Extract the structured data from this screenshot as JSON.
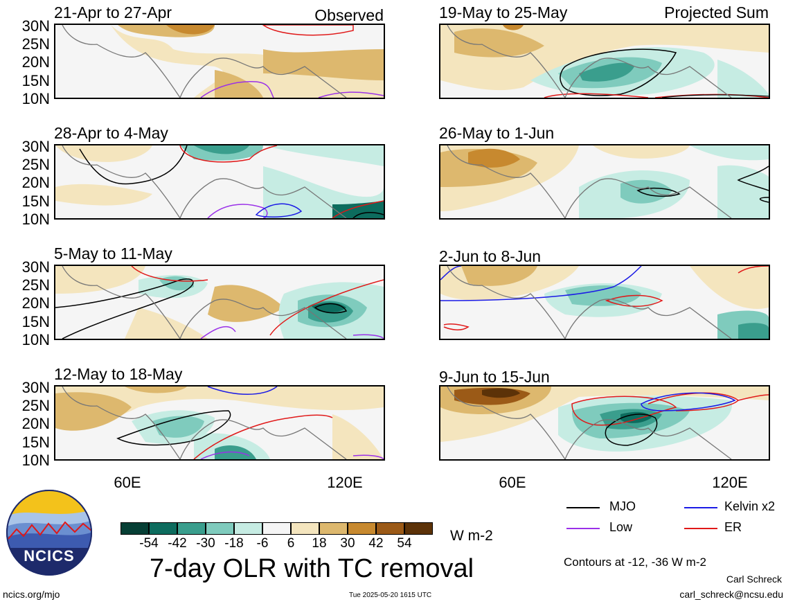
{
  "panels": [
    {
      "title": "21-Apr to 27-Apr",
      "tag": "Observed"
    },
    {
      "title": "28-Apr to 4-May",
      "tag": ""
    },
    {
      "title": "5-May to 11-May",
      "tag": ""
    },
    {
      "title": "12-May to 18-May",
      "tag": ""
    },
    {
      "title": "19-May to 25-May",
      "tag": "Projected Sum"
    },
    {
      "title": "26-May to 1-Jun",
      "tag": ""
    },
    {
      "title": "2-Jun to 8-Jun",
      "tag": ""
    },
    {
      "title": "9-Jun to 15-Jun",
      "tag": ""
    }
  ],
  "lat_labels": [
    "30N",
    "25N",
    "20N",
    "15N",
    "10N"
  ],
  "lon_labels": [
    "60E",
    "120E"
  ],
  "colorbar": {
    "labels": [
      "-54",
      "-42",
      "-30",
      "-18",
      "-6",
      "6",
      "18",
      "30",
      "42",
      "54"
    ],
    "colors": [
      "#063f35",
      "#0d6c5e",
      "#3a9e8d",
      "#7fcbbd",
      "#c6ece3",
      "#f5f5f5",
      "#f4e5be",
      "#ddb86e",
      "#c7892f",
      "#9b5a17",
      "#5c3208"
    ],
    "units": "W m-2"
  },
  "legend": {
    "mjo": "MJO",
    "kelvin": "Kelvin x2",
    "low": "Low",
    "er": "ER",
    "colors": {
      "mjo": "#000000",
      "kelvin": "#1a1ae6",
      "low": "#9a30e8",
      "er": "#e01818"
    }
  },
  "main_title": "7-day OLR with TC removal",
  "contours_note": "Contours at -12, -36 W m-2",
  "author": "Carl Schreck",
  "email": "carl_schreck@ncsu.edu",
  "site": "ncics.org/mjo",
  "timestamp": "Tue 2025-05-20 1615 UTC",
  "logo_text": "NCICS"
}
